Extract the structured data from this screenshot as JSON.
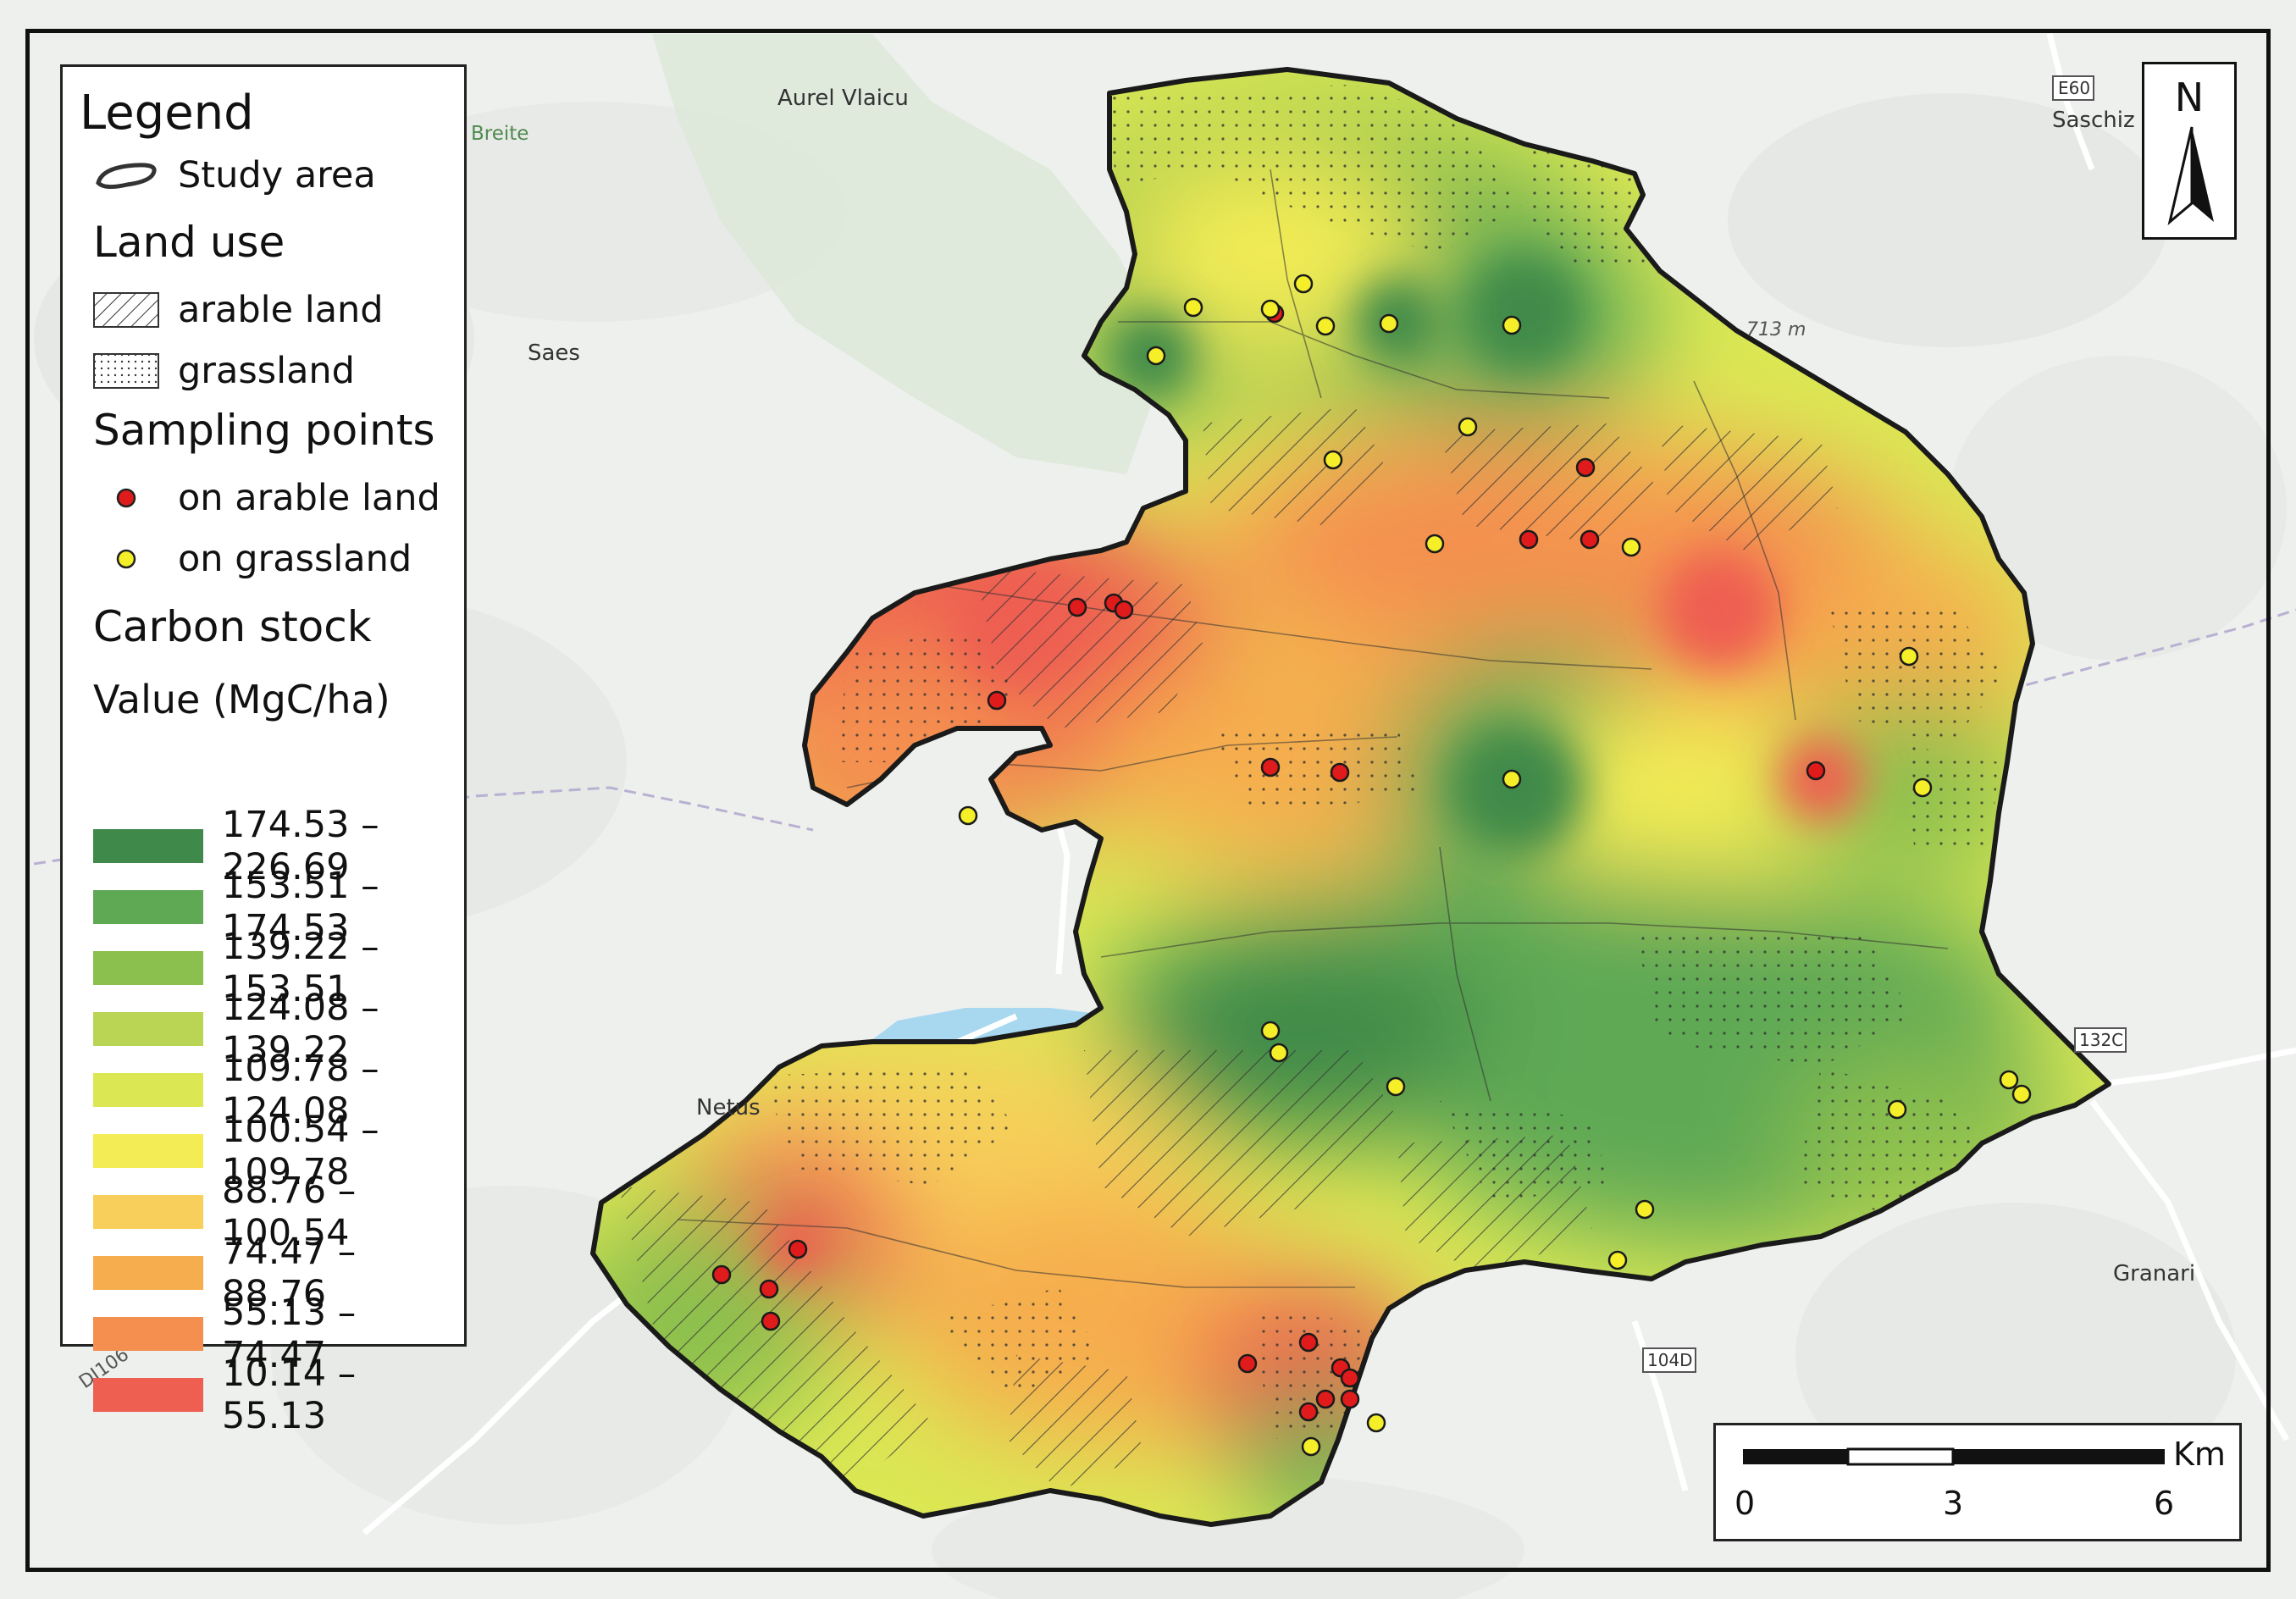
{
  "legend": {
    "title": "Legend",
    "study_area": "Study area",
    "land_use_title": "Land use",
    "arable": "arable land",
    "grassland": "grassland",
    "sampling_title": "Sampling points",
    "on_arable": "on arable land",
    "on_grassland": "on grassland",
    "carbon_title": "Carbon stock",
    "value_title": "Value (MgC/ha)",
    "classes": [
      {
        "label": "174.53 – 226.69",
        "color": "#3f8a4a"
      },
      {
        "label": "153.51 – 174.53",
        "color": "#5fa955"
      },
      {
        "label": "139.22 – 153.51",
        "color": "#8cc04e"
      },
      {
        "label": "124.08 – 139.22",
        "color": "#b9d553"
      },
      {
        "label": "109.78 – 124.08",
        "color": "#dbe854"
      },
      {
        "label": "100.54 – 109.78",
        "color": "#f3ec55"
      },
      {
        "label": "88.76 – 100.54",
        "color": "#f7cf5a"
      },
      {
        "label": "74.47 – 88.76",
        "color": "#f6ad4e"
      },
      {
        "label": "55.13 – 74.47",
        "color": "#f48f50"
      },
      {
        "label": "10.14 – 55.13",
        "color": "#ee5e51"
      }
    ]
  },
  "place_labels": {
    "aurel_vlaicu": "Aurel Vlaicu",
    "breite": "Breite",
    "saes": "Saes",
    "saschiz": "Saschiz",
    "netus": "Netus",
    "granari": "Granari",
    "peak": "713 m",
    "road_e60": "E60",
    "road_132c": "132C",
    "road_104d": "104D",
    "road_dj106": "DJ106"
  },
  "north_arrow": {
    "label": "N"
  },
  "scale_bar": {
    "unit": "Km",
    "ticks": [
      "0",
      "3",
      "6"
    ]
  },
  "colors": {
    "study_outline": "#1a1a1a",
    "arable_point": "#e01b1b",
    "grass_point": "#f5ef2a",
    "basemap": "#eef0ee",
    "water": "#a8d8f0"
  }
}
